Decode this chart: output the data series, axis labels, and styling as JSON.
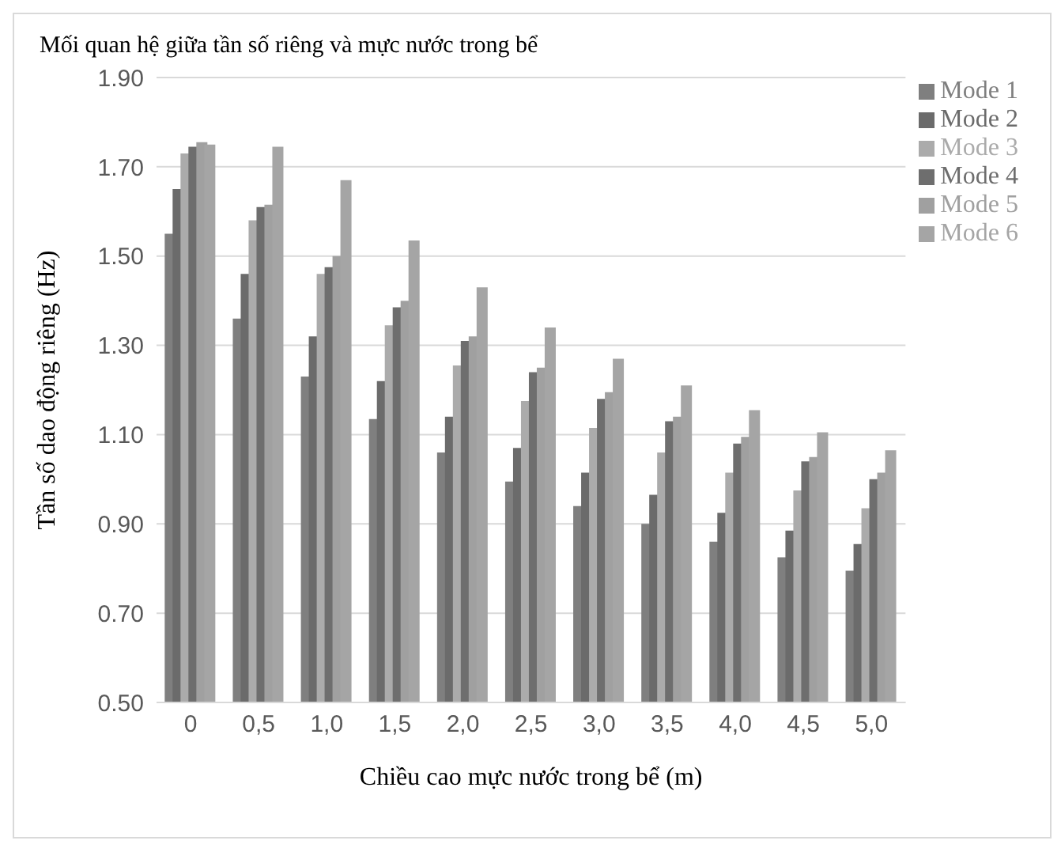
{
  "chart_data": {
    "type": "bar",
    "title": "Mối quan hệ giữa tần số riêng và mực nước trong bể",
    "xlabel": "Chiều cao mực nước trong bể (m)",
    "ylabel": "Tần số dao động riêng (Hz)",
    "categories": [
      "0",
      "0,5",
      "1,0",
      "1,5",
      "2,0",
      "2,5",
      "3,0",
      "3,5",
      "4,0",
      "4,5",
      "5,0"
    ],
    "ylim": [
      0.5,
      1.9
    ],
    "yticks": [
      {
        "value": 0.5,
        "label": "0.50"
      },
      {
        "value": 0.7,
        "label": "0.70"
      },
      {
        "value": 0.9,
        "label": "0.90"
      },
      {
        "value": 1.1,
        "label": "1.10"
      },
      {
        "value": 1.3,
        "label": "1.30"
      },
      {
        "value": 1.5,
        "label": "1.50"
      },
      {
        "value": 1.7,
        "label": "1.70"
      },
      {
        "value": 1.9,
        "label": "1.90"
      }
    ],
    "grid": "y",
    "legend": "right",
    "series": [
      {
        "name": "Mode 1",
        "color": "#7f7f7f",
        "values": [
          1.55,
          1.36,
          1.23,
          1.135,
          1.06,
          0.995,
          0.94,
          0.9,
          0.86,
          0.825,
          0.795
        ]
      },
      {
        "name": "Mode 2",
        "color": "#6b6b6b",
        "values": [
          1.65,
          1.46,
          1.32,
          1.22,
          1.14,
          1.07,
          1.015,
          0.965,
          0.925,
          0.885,
          0.855
        ]
      },
      {
        "name": "Mode 3",
        "color": "#ababab",
        "values": [
          1.73,
          1.58,
          1.46,
          1.345,
          1.255,
          1.175,
          1.115,
          1.06,
          1.015,
          0.975,
          0.935
        ]
      },
      {
        "name": "Mode 4",
        "color": "#6e6e6e",
        "values": [
          1.745,
          1.61,
          1.475,
          1.385,
          1.31,
          1.24,
          1.18,
          1.13,
          1.08,
          1.04,
          1.0
        ]
      },
      {
        "name": "Mode 5",
        "color": "#a0a0a0",
        "values": [
          1.755,
          1.615,
          1.5,
          1.4,
          1.32,
          1.25,
          1.195,
          1.14,
          1.095,
          1.05,
          1.015
        ]
      },
      {
        "name": "Mode 6",
        "color": "#a5a5a5",
        "values": [
          1.75,
          1.745,
          1.67,
          1.535,
          1.43,
          1.34,
          1.27,
          1.21,
          1.155,
          1.105,
          1.065
        ]
      }
    ]
  }
}
